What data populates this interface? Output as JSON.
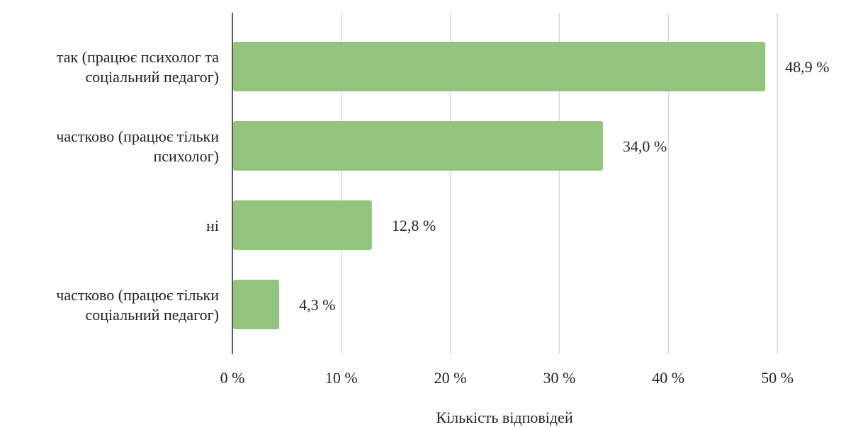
{
  "chart_data": {
    "type": "bar",
    "orientation": "horizontal",
    "categories": [
      [
        "так (працює психолог та",
        "соціальний педагог)"
      ],
      [
        "частково (працює тільки",
        "психолог)"
      ],
      [
        "ні"
      ],
      [
        "частково (працює тільки",
        "соціальний педагог)"
      ]
    ],
    "values": [
      48.9,
      34.0,
      12.8,
      4.3
    ],
    "value_labels": [
      "48,9 %",
      "34,0 %",
      "12,8 %",
      "4,3 %"
    ],
    "xlim": [
      0,
      50
    ],
    "xticks": [
      0,
      10,
      20,
      30,
      40,
      50
    ],
    "xtick_labels": [
      "0 %",
      "10 %",
      "20 %",
      "30 %",
      "40 %",
      "50 %"
    ],
    "xlabel": "Кількість відповідей",
    "ylabel": "",
    "title": "",
    "grid": "vertical",
    "legend": "none",
    "bar_color": "#93c47d"
  }
}
